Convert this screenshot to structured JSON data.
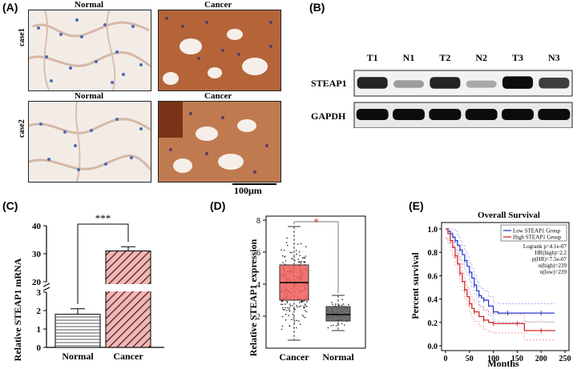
{
  "panels": {
    "a": "(A)",
    "b": "(B)",
    "c": "(C)",
    "d": "(D)",
    "e": "(E)"
  },
  "panel_a": {
    "col_normal": "Normal",
    "col_cancer": "Cancer",
    "row1": "case1",
    "row2": "case2",
    "scale": "100μm"
  },
  "panel_b": {
    "lanes": [
      "T1",
      "N1",
      "T2",
      "N2",
      "T3",
      "N3"
    ],
    "row_steap1": "STEAP1",
    "row_gapdh": "GAPDH",
    "steap1_intensity": [
      0.85,
      0.35,
      0.85,
      0.3,
      0.95,
      0.75
    ],
    "gapdh_intensity": [
      0.95,
      0.95,
      0.95,
      0.95,
      0.95,
      0.95
    ]
  },
  "chart_data": [
    {
      "type": "bar",
      "ylabel": "Relative STEAP1 mRNA",
      "categories": [
        "Normal",
        "Cancer"
      ],
      "values": [
        1.8,
        31
      ],
      "errors": [
        0.3,
        1.5
      ],
      "y_ticks_lower": [
        "0",
        "1",
        "2",
        "3"
      ],
      "y_ticks_upper": [
        "20",
        "30",
        "40"
      ],
      "significance": "***"
    },
    {
      "type": "box",
      "ylabel": "Relative STEAP1 expression",
      "categories": [
        "Cancer",
        "Normal"
      ],
      "box_colors": [
        "#f0625f",
        "#5a5a5a"
      ],
      "boxes": [
        {
          "min": 0.5,
          "q1": 3.0,
          "median": 4.1,
          "q3": 5.2,
          "max": 7.6
        },
        {
          "min": 1.1,
          "q1": 1.7,
          "median": 2.1,
          "q3": 2.6,
          "max": 3.3
        }
      ],
      "ylim": [
        0,
        8
      ],
      "y_ticks": [
        "2",
        "4",
        "6",
        "8"
      ],
      "significance": "*"
    },
    {
      "type": "line",
      "title": "Overall Survival",
      "xlabel": "Months",
      "ylabel": "Percent survival",
      "xlim": [
        0,
        250
      ],
      "ylim": [
        0,
        1
      ],
      "x_ticks": [
        "0",
        "50",
        "100",
        "150",
        "200",
        "250"
      ],
      "y_ticks": [
        "0.0",
        "0.2",
        "0.4",
        "0.6",
        "0.8",
        "1.0"
      ],
      "legend": [
        "Low STEAP1 Group",
        "High STEAP1 Group"
      ],
      "stats": [
        "Logrank p=4.1e-07",
        "HR(high)=2.2",
        "p(HR)=7.5e-07",
        "n(high)=239",
        "n(low)=239"
      ],
      "series": [
        {
          "name": "Low STEAP1 Group",
          "color": "#2a3dcc",
          "x": [
            0,
            5,
            10,
            15,
            20,
            25,
            30,
            35,
            40,
            45,
            50,
            55,
            60,
            65,
            70,
            75,
            80,
            90,
            100,
            110,
            130,
            160,
            200,
            228
          ],
          "y": [
            1.0,
            0.98,
            0.96,
            0.93,
            0.9,
            0.86,
            0.82,
            0.78,
            0.73,
            0.68,
            0.63,
            0.58,
            0.52,
            0.47,
            0.43,
            0.41,
            0.39,
            0.34,
            0.29,
            0.28,
            0.28,
            0.28,
            0.28,
            0.28
          ]
        },
        {
          "name": "High STEAP1 Group",
          "color": "#d62828",
          "x": [
            0,
            5,
            10,
            15,
            20,
            25,
            30,
            35,
            40,
            45,
            50,
            55,
            60,
            70,
            80,
            90,
            100,
            120,
            150,
            165,
            200,
            230
          ],
          "y": [
            1.0,
            0.96,
            0.9,
            0.84,
            0.77,
            0.7,
            0.62,
            0.55,
            0.48,
            0.42,
            0.36,
            0.32,
            0.29,
            0.25,
            0.22,
            0.2,
            0.19,
            0.19,
            0.19,
            0.13,
            0.13,
            0.13
          ]
        }
      ]
    }
  ]
}
